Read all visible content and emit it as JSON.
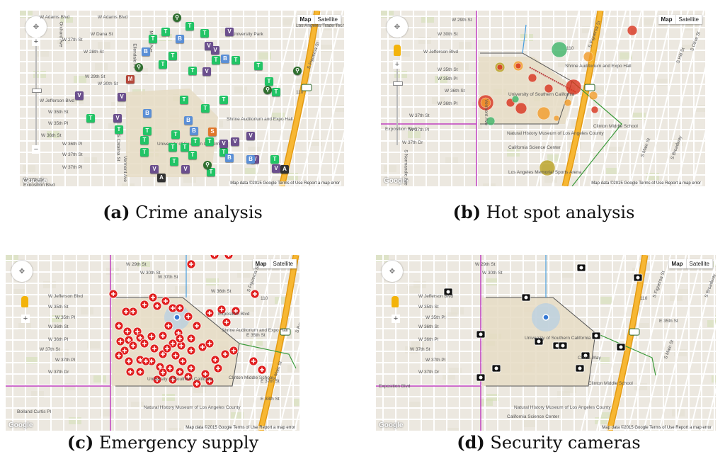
{
  "panels": [
    {
      "id": "a",
      "caption_letter": "(a)",
      "caption_text": "Crime analysis",
      "map_btn": "Map",
      "sat_btn": "Satellite",
      "attribution": "Map data ©2015 Google   Terms of Use   Report a map error",
      "logo": "Google",
      "labels": [
        "W Adams Blvd",
        "W Adams Blvd",
        "W 27th St",
        "W 28th St",
        "W 29th St",
        "W 30th St",
        "W Jefferson Blvd",
        "W 35th St",
        "W 35th Pl",
        "W 36th St",
        "W 36th Pl",
        "W 37th St",
        "W 37th Pl",
        "W 37th Dr",
        "Exposition Blvd",
        "Los Angeles Trade Technical College",
        "University Park",
        "Shrine Auditorium and Expo Hall",
        "University of Southern California",
        "Vermont Ave",
        "S Catalina St",
        "S Figueroa St",
        "110",
        "Orchard Ave",
        "Menlo Ave",
        "Ellendale Pl",
        "W Dana St"
      ],
      "marker_legend": {
        "T": "Theft",
        "V": "Vandalism",
        "B": "Burglary",
        "M": "Misc",
        "S": "Sexual assault",
        "A": "Assault",
        "bike": "Bike theft"
      }
    },
    {
      "id": "b",
      "caption_letter": "(b)",
      "caption_text": "Hot spot analysis",
      "map_btn": "Map",
      "sat_btn": "Satellite",
      "attribution": "Map data ©2015 Google   Terms of Use   Report a map error",
      "logo": "Google",
      "labels": [
        "W 29th St",
        "W 30th St",
        "W Jefferson Blvd",
        "W 35th St",
        "W 35th Pl",
        "W 36th St",
        "W 36th Pl",
        "W 37th St",
        "W 37th Pl",
        "W 37th Dr",
        "Exposition Blvd",
        "Shrine Auditorium and Expo Hall",
        "University of Southern California",
        "Clinton Middle School",
        "Natural History Museum of Los Angeles County",
        "California Science Center",
        "Los Angeles Memorial Sports Arena",
        "Vermont Ave",
        "S Figueroa St",
        "110",
        "S Normandie Ave",
        "S Hill St",
        "S Main St",
        "S Broadway",
        "S Olive St"
      ]
    },
    {
      "id": "c",
      "caption_letter": "(c)",
      "caption_text": "Emergency supply",
      "map_btn": "Map",
      "sat_btn": "Satellite",
      "attribution": "Map data ©2015 Google   Terms of Use   Report a map error",
      "logo": "Google",
      "labels": [
        "W 29th St",
        "W 30th St",
        "W Jefferson Blvd",
        "W 35th St",
        "W 35th Pl",
        "W 36th St",
        "W 36th Pl",
        "W 37th St",
        "W 37th Pl",
        "W 37th Dr",
        "W 37th St",
        "W 36th St",
        "Exposition Blvd",
        "Shrine Auditorium and Expo Hall",
        "University of Southern California",
        "Clinton Middle School",
        "Natural History Museum of Los Angeles County",
        "Bolland Curtis Pl",
        "110",
        "S Figueroa St",
        "S Broadway",
        "S Main St",
        "E 35th St",
        "E 37th St",
        "E 38th St"
      ]
    },
    {
      "id": "d",
      "caption_letter": "(d)",
      "caption_text": "Security cameras",
      "map_btn": "Map",
      "sat_btn": "Satellite",
      "attribution": "Map data ©2015 Google   Terms of Use   Report a map error",
      "logo": "Google",
      "labels": [
        "W 29th St",
        "W 30th St",
        "W Jefferson Blvd",
        "W 35th St",
        "W 35th Pl",
        "W 36th St",
        "W 36th Pl",
        "W 37th St",
        "W 37th Pl",
        "W 37th Dr",
        "Exposition Blvd",
        "University of Southern California",
        "Clinton Middle School",
        "Natural History Museum of Los Angeles County",
        "California Science Center",
        "Childs Way",
        "110",
        "S Figueroa St",
        "S Broadway",
        "S Main St",
        "E 35th St"
      ]
    }
  ],
  "colors": {
    "map_bg": "#ece8e0",
    "street": "#ffffff",
    "highway": "#f7b733",
    "highway_edge": "#e39b14",
    "park": "#d5dfb8",
    "campus": "#e6dcc4",
    "theft_marker": "#22c466",
    "vandalism_marker": "#6b4f8d",
    "burglary_marker": "#5b8fd6",
    "misc_marker": "#b5473a",
    "sexual_marker": "#e0772b",
    "assault_marker": "#333333",
    "hotspot_red": "#d9341e",
    "hotspot_orange": "#f39c2a",
    "hotspot_green": "#3fb56a",
    "hotspot_olive": "#b8a020",
    "supply_red": "#e02020",
    "camera_black": "#111111",
    "route_magenta": "#c040c0",
    "route_blue": "#4aa0e0",
    "route_green": "#3a9a3a"
  }
}
